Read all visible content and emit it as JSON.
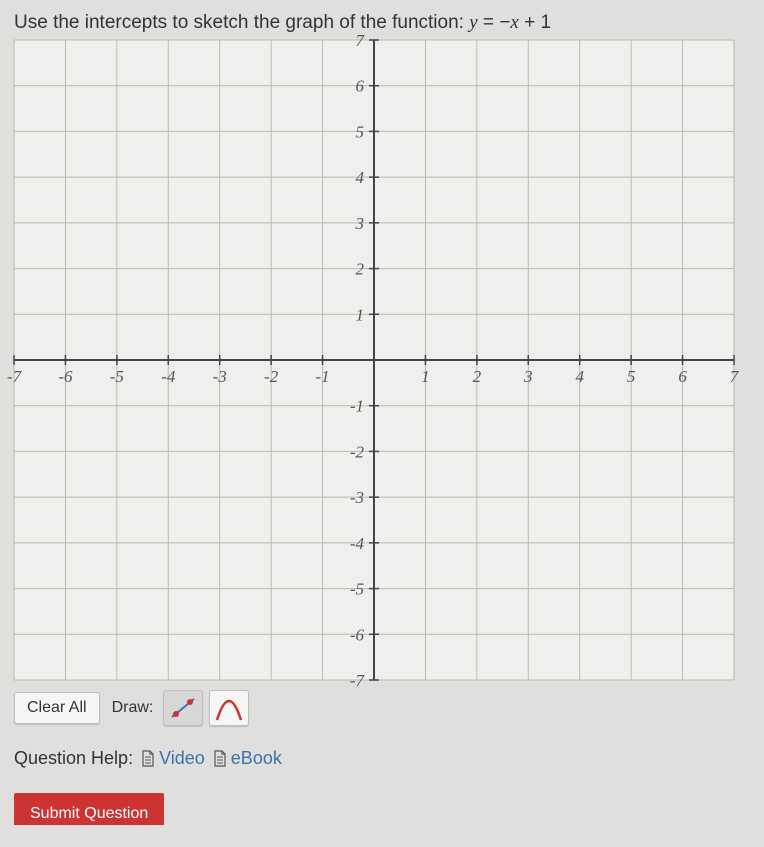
{
  "prompt": {
    "text": "Use the intercepts to sketch the graph of the function: ",
    "equation_lhs": "y",
    "equation_eq": " = ",
    "equation_rhs_minus": "−",
    "equation_rhs_var": "x",
    "equation_rhs_plus": " + 1"
  },
  "graph": {
    "xlim": [
      -7,
      7
    ],
    "ylim": [
      -7,
      7
    ],
    "tick_step": 1,
    "x_labels": [
      -7,
      -6,
      -5,
      -4,
      -3,
      -2,
      -1,
      1,
      2,
      3,
      4,
      5,
      6,
      7
    ],
    "y_labels": [
      7,
      6,
      5,
      4,
      3,
      2,
      1,
      -1,
      -2,
      -3,
      -4,
      -5,
      -6,
      -7
    ],
    "grid_color": "#b8b8b4",
    "axis_color": "#444444",
    "background_color": "#f0efed",
    "label_color": "#555555",
    "label_fontsize": 17,
    "label_font": "italic serif"
  },
  "toolbar": {
    "clear_all": "Clear All",
    "draw_label": "Draw:",
    "tools": {
      "line": {
        "name": "line-tool",
        "stroke": "#3a6fb0",
        "point_color": "#cc3333"
      },
      "parabola": {
        "name": "parabola-tool",
        "stroke": "#cc3333"
      }
    }
  },
  "help": {
    "label": "Question Help:",
    "video": "Video",
    "ebook": "eBook",
    "link_color": "#3973ac"
  },
  "submit": {
    "label": "Submit Question",
    "bg": "#cc3333"
  }
}
